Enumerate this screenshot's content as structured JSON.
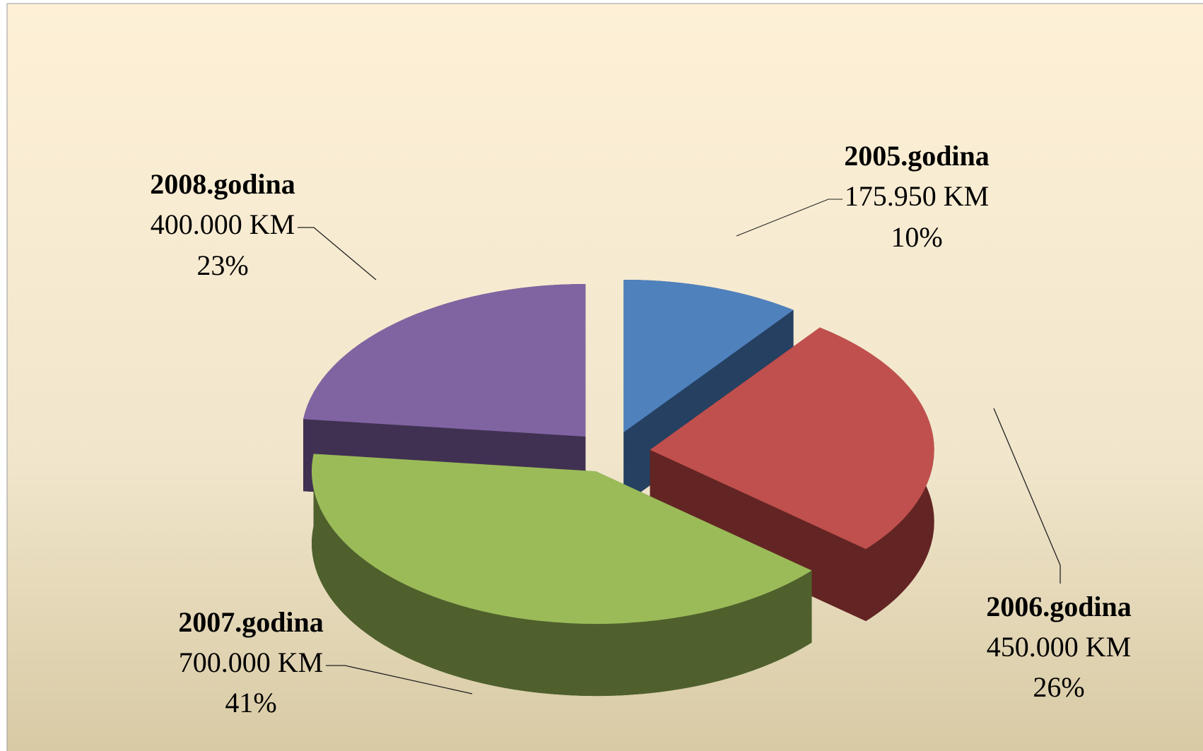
{
  "chart_data": {
    "type": "pie3d",
    "categories": [
      "2005.godina",
      "2006.godina",
      "2007.godina",
      "2008.godina"
    ],
    "values": [
      175950,
      450000,
      700000,
      400000
    ],
    "value_labels": [
      "175.950 KM",
      "450.000 KM",
      "700.000 KM",
      "400.000 KM"
    ],
    "percent_labels": [
      "10%",
      "26%",
      "41%",
      "23%"
    ],
    "colors": [
      "#4f81bd",
      "#c0504d",
      "#9bbb59",
      "#8064a2"
    ],
    "side_colors": [
      "#254061",
      "#632523",
      "#4f602d",
      "#403152"
    ]
  }
}
